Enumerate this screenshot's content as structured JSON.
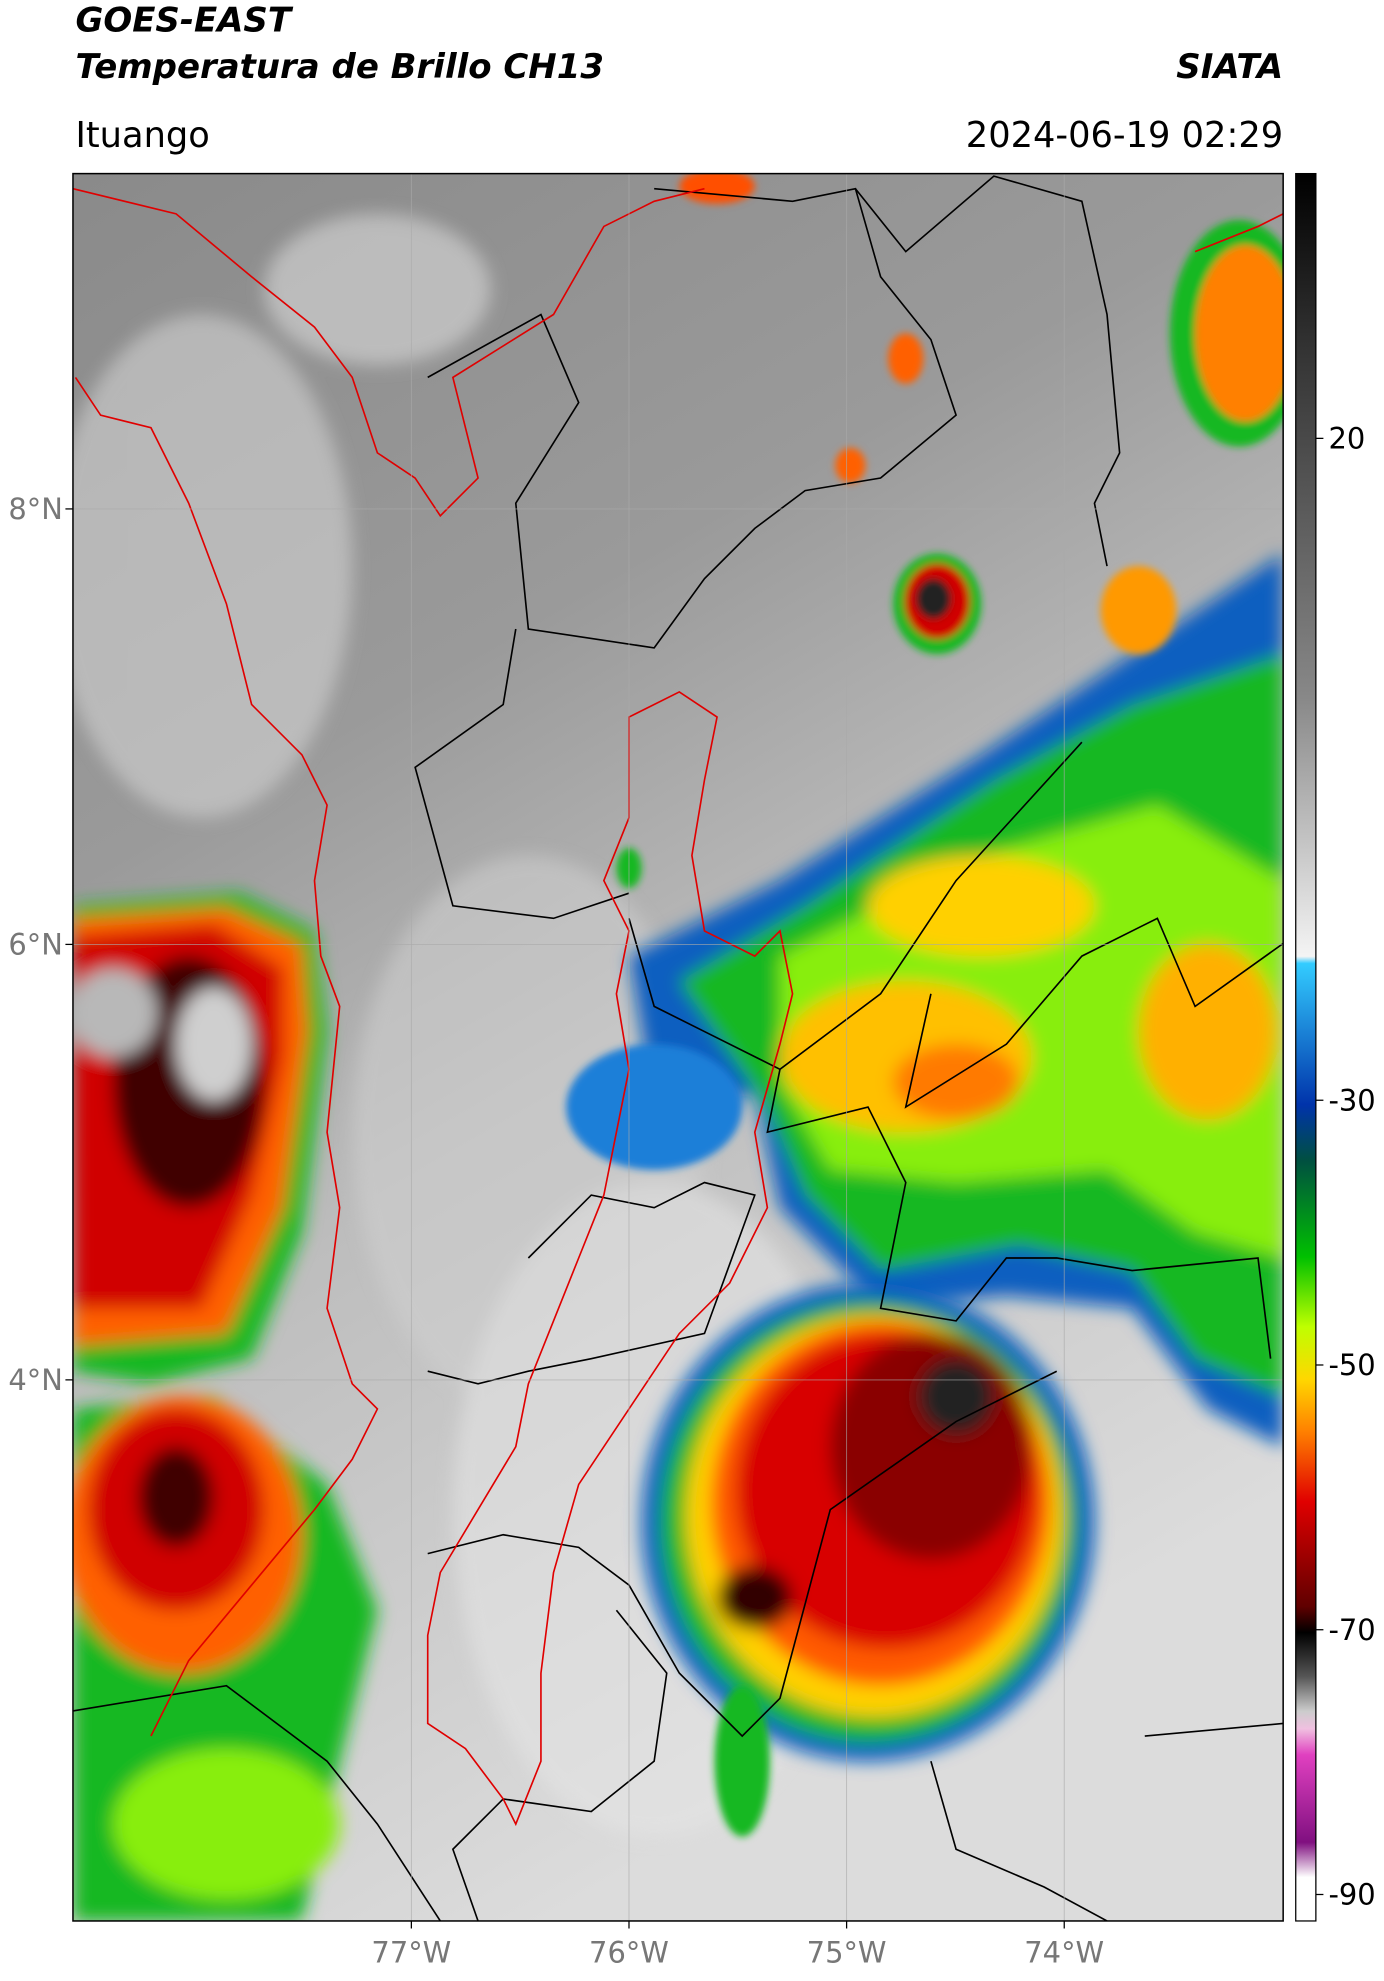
{
  "header": {
    "title": "GOES-EAST",
    "subtitle": "Temperatura de Brillo CH13",
    "organization": "SIATA",
    "region": "Ituango",
    "timestamp": "2024-06-19 02:29"
  },
  "map": {
    "lonlim": [
      -78.555,
      -72.994
    ],
    "latlim": [
      1.515,
      9.54
    ],
    "grid": true,
    "lon_ticks": [
      {
        "value": -77,
        "label": "77°W"
      },
      {
        "value": -76,
        "label": "76°W"
      },
      {
        "value": -75,
        "label": "75°W"
      },
      {
        "value": -74,
        "label": "74°W"
      }
    ],
    "lat_ticks": [
      {
        "value": 8,
        "label": "8°N"
      },
      {
        "value": 6,
        "label": "6°N"
      },
      {
        "value": 4,
        "label": "4°N"
      }
    ]
  },
  "colorbar": {
    "lim": [
      -92,
      40
    ],
    "ticks": [
      20,
      -30,
      -50,
      -70,
      -90
    ]
  }
}
